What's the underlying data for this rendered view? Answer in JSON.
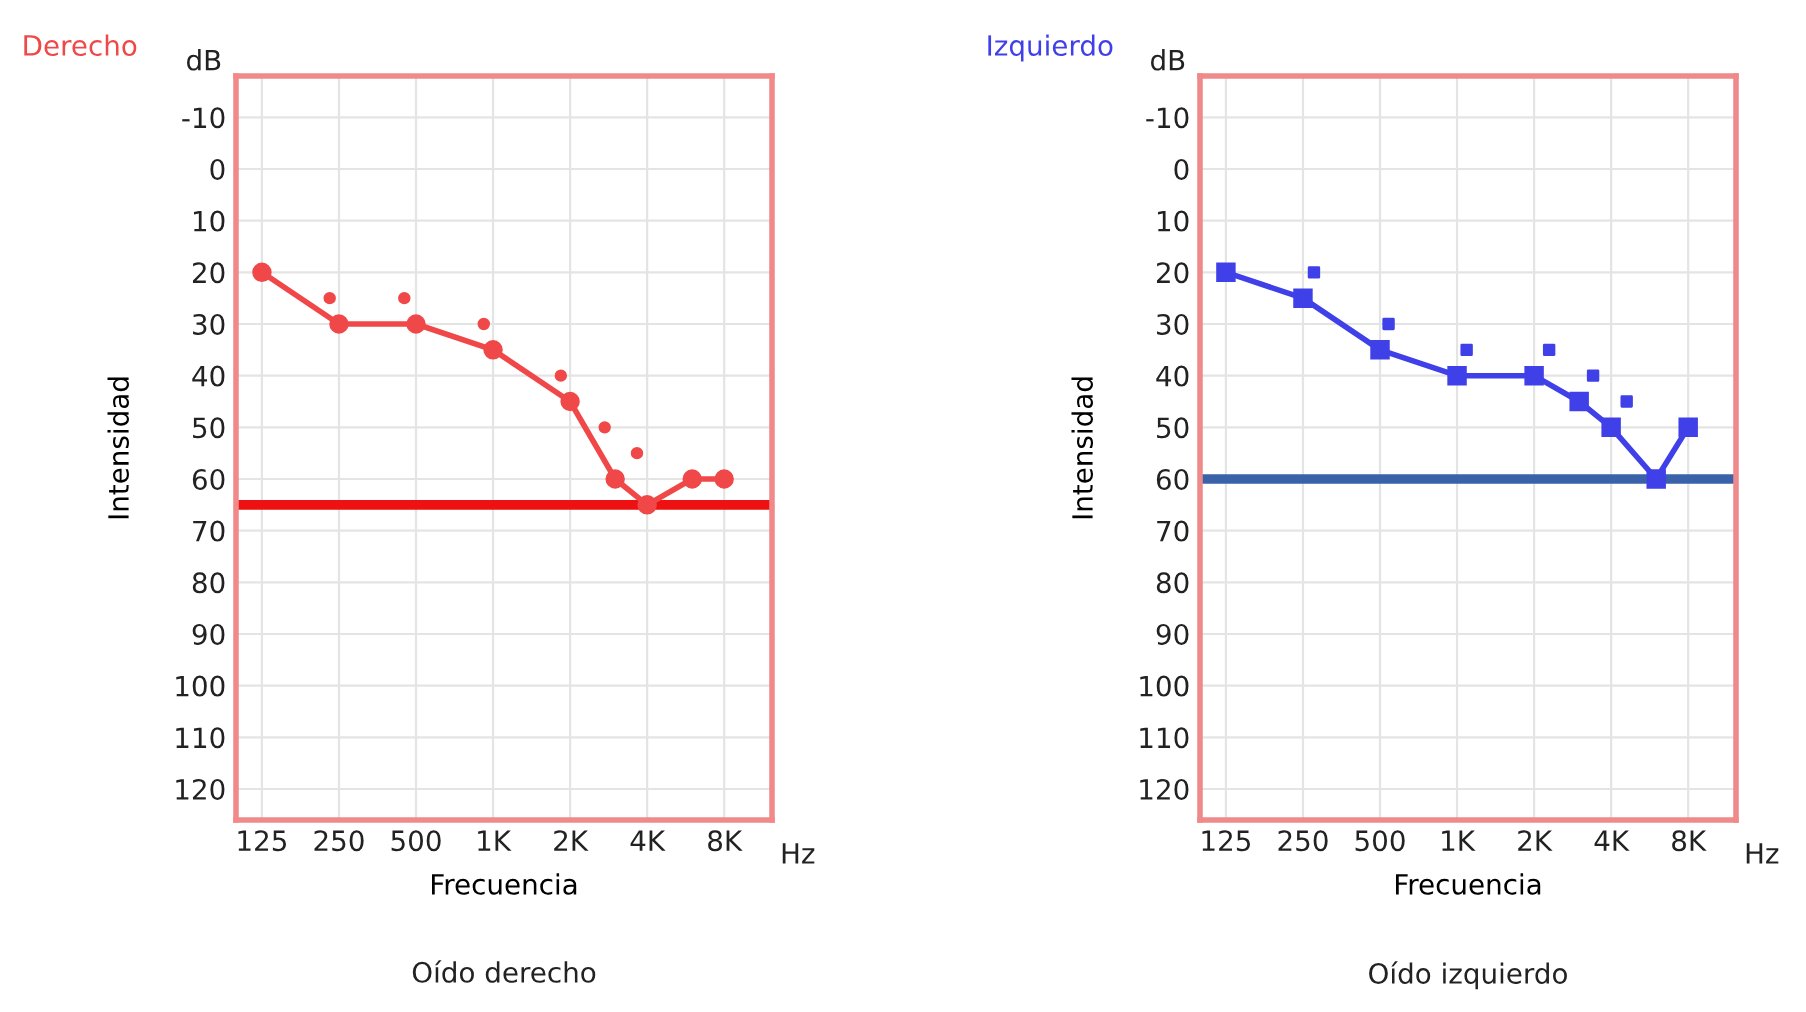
{
  "chart_data": [
    {
      "type": "line",
      "title": "Derecho",
      "xlabel": "Frecuencia",
      "ylabel": "Intensidad",
      "log": "x",
      "grid": true,
      "legend": false,
      "xlim": [
        99,
        12300
      ],
      "ylim": [
        126,
        -18
      ],
      "xticks": [
        {
          "value": 125,
          "label": "125"
        },
        {
          "value": 250,
          "label": "250"
        },
        {
          "value": 500,
          "label": "500"
        },
        {
          "value": 1000,
          "label": "1K"
        },
        {
          "value": 2000,
          "label": "2K"
        },
        {
          "value": 4000,
          "label": "4K"
        },
        {
          "value": 8000,
          "label": "8K"
        }
      ],
      "yticks": [
        -10,
        0,
        10,
        20,
        30,
        40,
        50,
        60,
        70,
        80,
        90,
        100,
        110,
        120
      ],
      "series": [
        {
          "color": "#f04848",
          "marker": "circle",
          "x": [
            125,
            250,
            500,
            1000,
            2000,
            3000,
            4000,
            6000,
            8000
          ],
          "values": [
            20,
            30,
            30,
            35,
            45,
            60,
            65,
            60,
            60
          ]
        },
        {
          "type": "scatter",
          "color": "#f04848",
          "marker": "circle",
          "x": [
            230,
            450,
            920,
            1840,
            2730,
            3650
          ],
          "values": [
            25,
            25,
            30,
            40,
            50,
            55
          ]
        }
      ],
      "ref_lines": [
        {
          "axis": "y",
          "value": 65,
          "color": "#ee1111"
        }
      ],
      "annotations": [
        "dB",
        "Hz",
        "Oído derecho"
      ]
    },
    {
      "type": "line",
      "title": "Izquierdo",
      "xlabel": "Frecuencia",
      "ylabel": "Intensidad",
      "log": "x",
      "grid": true,
      "legend": false,
      "xlim": [
        99,
        12300
      ],
      "ylim": [
        126,
        -18
      ],
      "xticks": [
        {
          "value": 125,
          "label": "125"
        },
        {
          "value": 250,
          "label": "250"
        },
        {
          "value": 500,
          "label": "500"
        },
        {
          "value": 1000,
          "label": "1K"
        },
        {
          "value": 2000,
          "label": "2K"
        },
        {
          "value": 4000,
          "label": "4K"
        },
        {
          "value": 8000,
          "label": "8K"
        }
      ],
      "yticks": [
        -10,
        0,
        10,
        20,
        30,
        40,
        50,
        60,
        70,
        80,
        90,
        100,
        110,
        120
      ],
      "series": [
        {
          "color": "#4040e8",
          "marker": "square",
          "x": [
            125,
            250,
            500,
            1000,
            2000,
            3000,
            4000,
            6000,
            8000
          ],
          "values": [
            20,
            25,
            35,
            40,
            40,
            45,
            50,
            60,
            50
          ]
        },
        {
          "type": "scatter",
          "color": "#4040e8",
          "marker": "square",
          "x": [
            276,
            540,
            1090,
            2290,
            3400,
            4600
          ],
          "values": [
            20,
            30,
            35,
            35,
            40,
            45
          ]
        }
      ],
      "ref_lines": [
        {
          "axis": "y",
          "value": 60,
          "color": "#3a62a8"
        }
      ],
      "annotations": [
        "dB",
        "Hz",
        "Oído izquierdo"
      ]
    }
  ]
}
